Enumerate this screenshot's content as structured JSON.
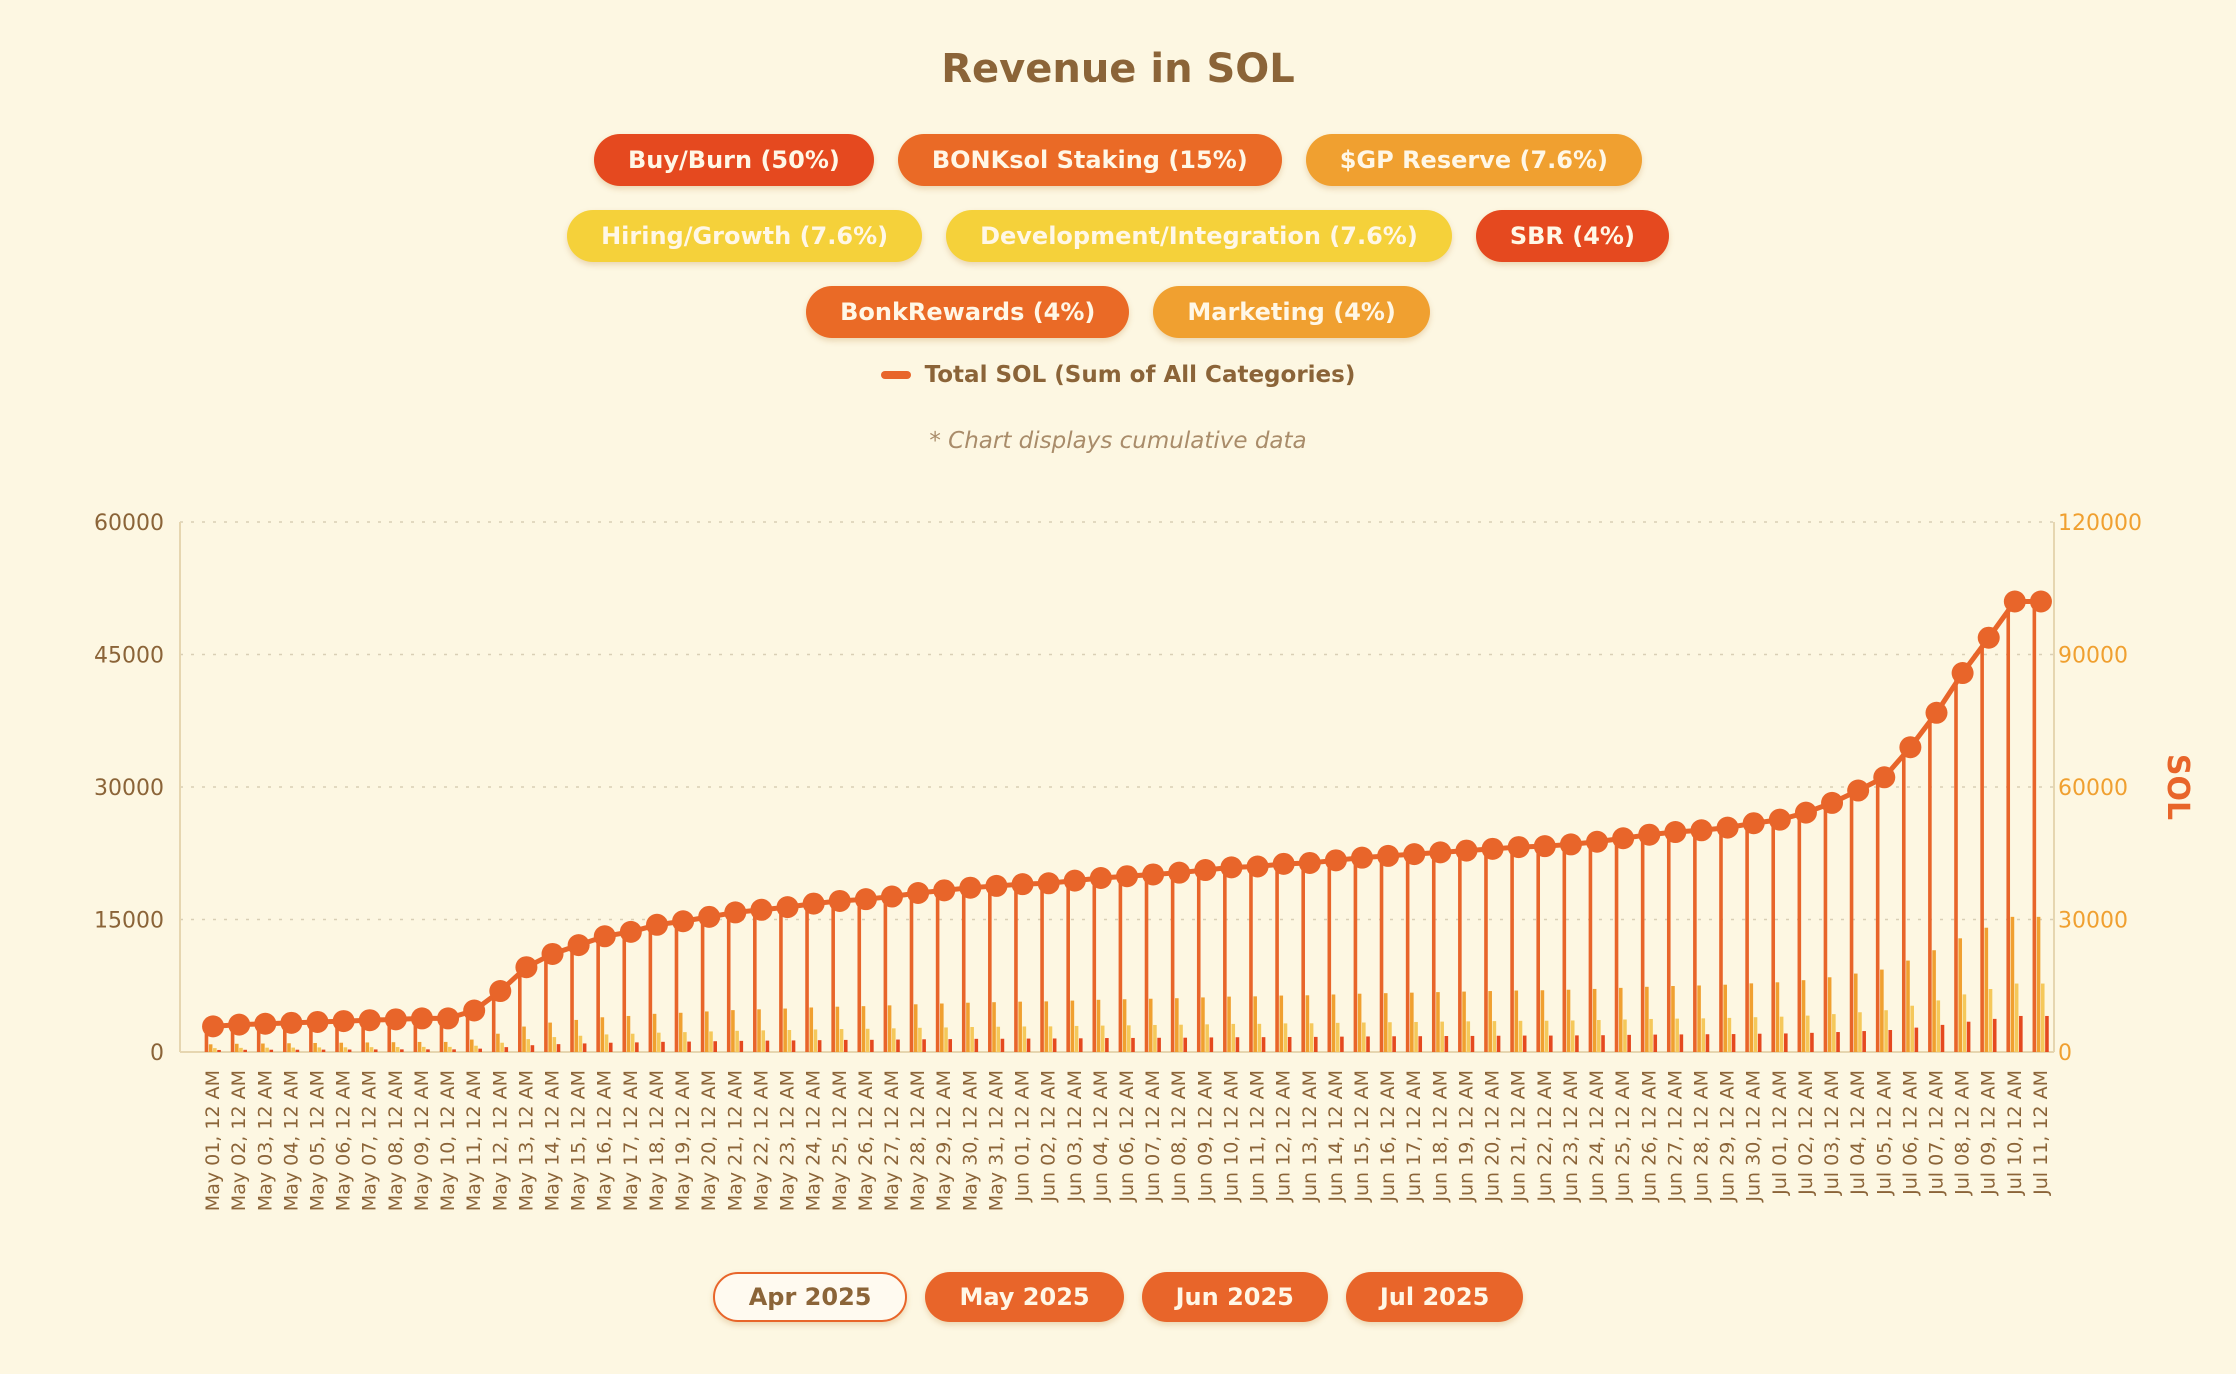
{
  "colors": {
    "background": "#fdf7e2",
    "title": "#8b6438",
    "total_line": "#e8652a",
    "bar_main": "#e8652a",
    "bar_secondary": "#f5c85a",
    "bar_tertiary": "#f0a030",
    "grid": "#d9cfb5"
  },
  "legend": [
    [
      {
        "label": "Buy/Burn (50%)",
        "color": "#e5491f"
      },
      {
        "label": "BONKsol Staking (15%)",
        "color": "#ea6a26"
      },
      {
        "label": "$GP Reserve (7.6%)",
        "color": "#f0a030"
      }
    ],
    [
      {
        "label": "Hiring/Growth (7.6%)",
        "color": "#f5d13a"
      },
      {
        "label": "Development/Integration (7.6%)",
        "color": "#f5d13a"
      },
      {
        "label": "SBR (4%)",
        "color": "#e5491f"
      }
    ],
    [
      {
        "label": "BonkRewards (4%)",
        "color": "#ea6a26"
      },
      {
        "label": "Marketing (4%)",
        "color": "#f0a030"
      }
    ]
  ],
  "total_legend_label": "Total SOL (Sum of All Categories)",
  "note": "* Chart displays cumulative data",
  "month_buttons": [
    {
      "label": "Apr 2025",
      "active": false
    },
    {
      "label": "May 2025",
      "active": true
    },
    {
      "label": "Jun 2025",
      "active": true
    },
    {
      "label": "Jul 2025",
      "active": true
    }
  ],
  "chart_data": {
    "type": "bar",
    "title": "Revenue in SOL",
    "xlabel": "",
    "ylabel_left": "",
    "ylabel_right": "SOL",
    "ylim_left": [
      0,
      60000
    ],
    "yticks_left": [
      0,
      15000,
      30000,
      45000,
      60000
    ],
    "ylim_right": [
      0,
      120000
    ],
    "yticks_right": [
      0,
      30000,
      60000,
      90000,
      120000
    ],
    "grid": true,
    "categories": [
      "May 01, 12 AM",
      "May 02, 12 AM",
      "May 03, 12 AM",
      "May 04, 12 AM",
      "May 05, 12 AM",
      "May 06, 12 AM",
      "May 07, 12 AM",
      "May 08, 12 AM",
      "May 09, 12 AM",
      "May 10, 12 AM",
      "May 11, 12 AM",
      "May 12, 12 AM",
      "May 13, 12 AM",
      "May 14, 12 AM",
      "May 15, 12 AM",
      "May 16, 12 AM",
      "May 17, 12 AM",
      "May 18, 12 AM",
      "May 19, 12 AM",
      "May 20, 12 AM",
      "May 21, 12 AM",
      "May 22, 12 AM",
      "May 23, 12 AM",
      "May 24, 12 AM",
      "May 25, 12 AM",
      "May 26, 12 AM",
      "May 27, 12 AM",
      "May 28, 12 AM",
      "May 29, 12 AM",
      "May 30, 12 AM",
      "May 31, 12 AM",
      "Jun 01, 12 AM",
      "Jun 02, 12 AM",
      "Jun 03, 12 AM",
      "Jun 04, 12 AM",
      "Jun 06, 12 AM",
      "Jun 07, 12 AM",
      "Jun 08, 12 AM",
      "Jun 09, 12 AM",
      "Jun 10, 12 AM",
      "Jun 11, 12 AM",
      "Jun 12, 12 AM",
      "Jun 13, 12 AM",
      "Jun 14, 12 AM",
      "Jun 15, 12 AM",
      "Jun 16, 12 AM",
      "Jun 17, 12 AM",
      "Jun 18, 12 AM",
      "Jun 19, 12 AM",
      "Jun 20, 12 AM",
      "Jun 21, 12 AM",
      "Jun 22, 12 AM",
      "Jun 23, 12 AM",
      "Jun 24, 12 AM",
      "Jun 25, 12 AM",
      "Jun 26, 12 AM",
      "Jun 27, 12 AM",
      "Jun 28, 12 AM",
      "Jun 29, 12 AM",
      "Jun 30, 12 AM",
      "Jul 01, 12 AM",
      "Jul 02, 12 AM",
      "Jul 03, 12 AM",
      "Jul 04, 12 AM",
      "Jul 05, 12 AM",
      "Jul 06, 12 AM",
      "Jul 07, 12 AM",
      "Jul 08, 12 AM",
      "Jul 09, 12 AM",
      "Jul 10, 12 AM",
      "Jul 11, 12 AM"
    ],
    "series": [
      {
        "name": "Buy/Burn (50%)",
        "axis": "left",
        "color": "#e8652a",
        "values": [
          2900,
          3100,
          3200,
          3300,
          3400,
          3500,
          3600,
          3700,
          3800,
          3800,
          4700,
          6900,
          9600,
          11100,
          12100,
          13100,
          13600,
          14400,
          14800,
          15300,
          15800,
          16100,
          16400,
          16800,
          17100,
          17300,
          17600,
          18000,
          18300,
          18600,
          18800,
          19000,
          19100,
          19400,
          19700,
          19900,
          20100,
          20300,
          20600,
          20900,
          21000,
          21300,
          21400,
          21700,
          22000,
          22200,
          22400,
          22600,
          22800,
          23000,
          23200,
          23300,
          23500,
          23800,
          24200,
          24600,
          24900,
          25100,
          25400,
          25900,
          26300,
          27100,
          28200,
          29600,
          31100,
          34500,
          38400,
          42900,
          46900,
          51000,
          51000
        ]
      },
      {
        "name": "BONKsol Staking (15%)",
        "axis": "left",
        "color": "#f0a030",
        "values": [
          870,
          930,
          960,
          990,
          1020,
          1050,
          1080,
          1110,
          1140,
          1140,
          1410,
          2070,
          2880,
          3330,
          3630,
          3930,
          4080,
          4320,
          4440,
          4590,
          4740,
          4830,
          4920,
          5040,
          5130,
          5190,
          5280,
          5400,
          5490,
          5580,
          5640,
          5700,
          5730,
          5820,
          5910,
          5970,
          6030,
          6090,
          6180,
          6270,
          6300,
          6390,
          6420,
          6510,
          6600,
          6660,
          6720,
          6780,
          6840,
          6900,
          6960,
          6990,
          7050,
          7140,
          7260,
          7380,
          7470,
          7530,
          7620,
          7770,
          7890,
          8130,
          8460,
          8880,
          9330,
          10350,
          11520,
          12870,
          14070,
          15300,
          15300
        ]
      },
      {
        "name": "$GP Reserve (7.6%)",
        "axis": "left",
        "color": "#f5c85a",
        "values": [
          440,
          470,
          490,
          500,
          520,
          530,
          550,
          560,
          580,
          580,
          710,
          1050,
          1460,
          1690,
          1840,
          1990,
          2070,
          2190,
          2250,
          2330,
          2400,
          2450,
          2490,
          2550,
          2600,
          2630,
          2680,
          2740,
          2780,
          2830,
          2860,
          2890,
          2900,
          2950,
          2990,
          3020,
          3060,
          3090,
          3130,
          3180,
          3190,
          3240,
          3250,
          3300,
          3340,
          3370,
          3400,
          3440,
          3470,
          3500,
          3530,
          3540,
          3570,
          3620,
          3680,
          3740,
          3780,
          3810,
          3860,
          3940,
          4000,
          4120,
          4290,
          4500,
          4730,
          5240,
          5840,
          6520,
          7130,
          7750,
          7750
        ]
      },
      {
        "name": "SBR (4%)",
        "axis": "left",
        "color": "#e5491f",
        "values": [
          230,
          250,
          260,
          260,
          270,
          280,
          290,
          300,
          300,
          300,
          380,
          550,
          770,
          890,
          970,
          1050,
          1090,
          1150,
          1180,
          1220,
          1260,
          1290,
          1310,
          1340,
          1370,
          1380,
          1410,
          1440,
          1460,
          1490,
          1500,
          1520,
          1530,
          1550,
          1580,
          1590,
          1610,
          1620,
          1650,
          1670,
          1680,
          1700,
          1710,
          1740,
          1760,
          1780,
          1790,
          1810,
          1820,
          1840,
          1860,
          1860,
          1880,
          1900,
          1940,
          1970,
          1990,
          2010,
          2030,
          2070,
          2100,
          2170,
          2260,
          2370,
          2490,
          2760,
          3070,
          3430,
          3750,
          4080,
          4080
        ]
      },
      {
        "name": "Total SOL (Sum of All Categories)",
        "axis": "right",
        "type": "line",
        "color": "#e8652a",
        "values": [
          5800,
          6200,
          6400,
          6600,
          6800,
          7000,
          7200,
          7400,
          7600,
          7600,
          9400,
          13800,
          19200,
          22200,
          24200,
          26200,
          27200,
          28800,
          29600,
          30600,
          31600,
          32200,
          32800,
          33600,
          34200,
          34600,
          35200,
          36000,
          36600,
          37200,
          37600,
          38000,
          38200,
          38800,
          39400,
          39800,
          40200,
          40600,
          41200,
          41800,
          42000,
          42600,
          42800,
          43400,
          44000,
          44400,
          44800,
          45200,
          45600,
          46000,
          46400,
          46600,
          47000,
          47600,
          48400,
          49200,
          49800,
          50200,
          50800,
          51800,
          52600,
          54200,
          56400,
          59200,
          62200,
          69000,
          76800,
          85800,
          93800,
          102000,
          102000
        ]
      }
    ]
  }
}
